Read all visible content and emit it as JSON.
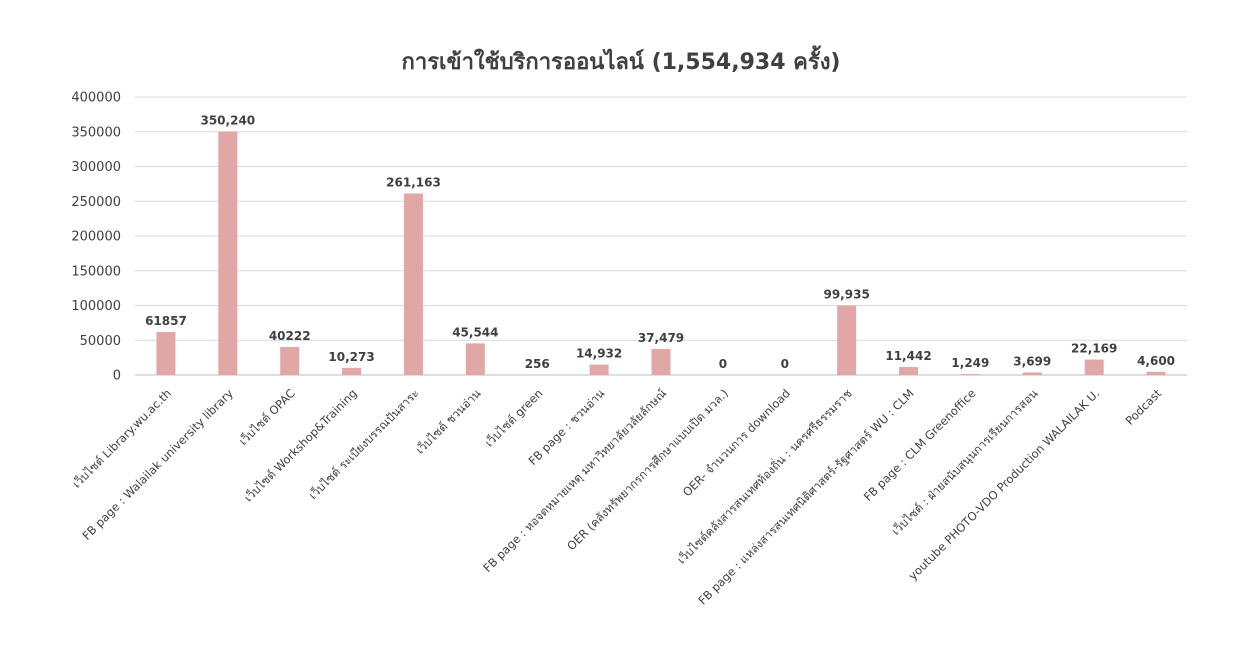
{
  "chart_data": {
    "type": "bar",
    "title": "การเข้าใช้บริการออนไลน์ (1,554,934 ครั้ง)",
    "xlabel": "",
    "ylabel": "",
    "ylim": [
      0,
      400000
    ],
    "yticks": [
      "0",
      "50000",
      "100000",
      "150000",
      "200000",
      "250000",
      "300000",
      "350000",
      "400000"
    ],
    "grid": true,
    "legend": "none",
    "bar_color": "#E0A7A6",
    "categories": [
      "เว็บไซต์ Library.wu.ac.th",
      "FB page : Walailak university library",
      "เว็บไซต์ OPAC",
      "เว็บไซต์ Workshop&Training",
      "เว็บไซต์ ระเบียงบรรณปันสาระ",
      "เว็บไซต์ ชวนอ่าน",
      "เว็บไซต์ green",
      "FB page : ชวนอ่าน",
      "FB page : หอจดหมายเหตุ มหาวิทยาลัยวลัยลักษณ์",
      "OER (คลังทรัพยากรการศึกษาแบบเปิด มวล.)",
      "OER- จำนวนการ download",
      "เว็บไซต์คลังสารสนเทศท้องถิ่น : นครศรีธรรมราช",
      "FB page : แหล่งสารสนเทศนิติศาสตร์-รัฐศาสตร์ WU : CLM",
      "FB page : CLM Greenoffice",
      "เว็บไซต์ : ฝ่ายสนับสนุนการเรียนการสอน",
      "youtube PHOTO-VDO Production WALAILAK U.",
      "Podcast"
    ],
    "values": [
      61857,
      350240,
      40222,
      10273,
      261163,
      45544,
      256,
      14932,
      37479,
      0,
      0,
      99935,
      11442,
      1249,
      3699,
      22169,
      4600
    ],
    "value_labels": [
      "61857",
      "350,240",
      "40222",
      "10,273",
      "261,163",
      "45,544",
      "256",
      "14,932",
      "37,479",
      "0",
      "0",
      "99,935",
      "11,442",
      "1,249",
      "3,699",
      "22,169",
      "4,600"
    ]
  }
}
